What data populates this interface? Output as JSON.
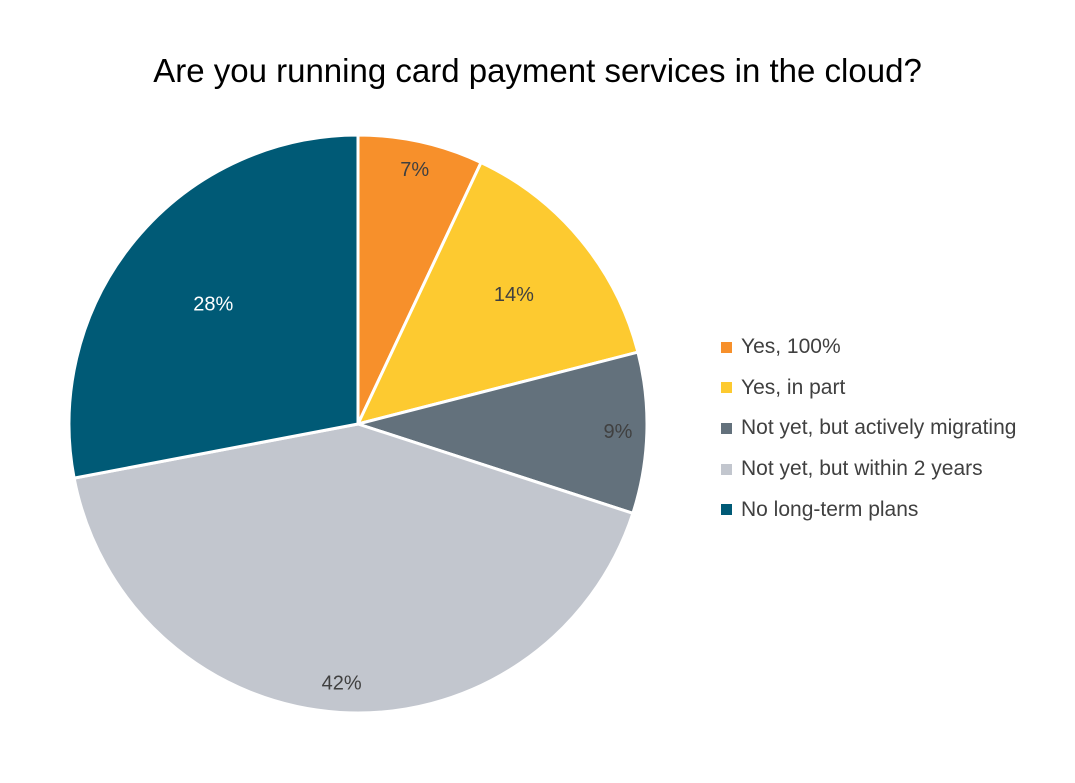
{
  "chart_data": {
    "type": "pie",
    "title": "Are you running card payment services in the cloud?",
    "categories": [
      "Yes, 100%",
      "Yes, in part",
      "Not yet, but actively migrating",
      "Not yet, but within 2 years",
      "No long-term plans"
    ],
    "values": [
      7,
      14,
      9,
      42,
      28
    ],
    "data_labels": [
      "7%",
      "14%",
      "9%",
      "42%",
      "28%"
    ],
    "colors": [
      "#f7902b",
      "#fdca30",
      "#63717c",
      "#c2c6ce",
      "#005a76"
    ],
    "label_colors": [
      "#404040",
      "#404040",
      "#404040",
      "#404040",
      "#ffffff"
    ],
    "start_angle": "12 o'clock",
    "direction": "clockwise",
    "legend_position": "right"
  }
}
